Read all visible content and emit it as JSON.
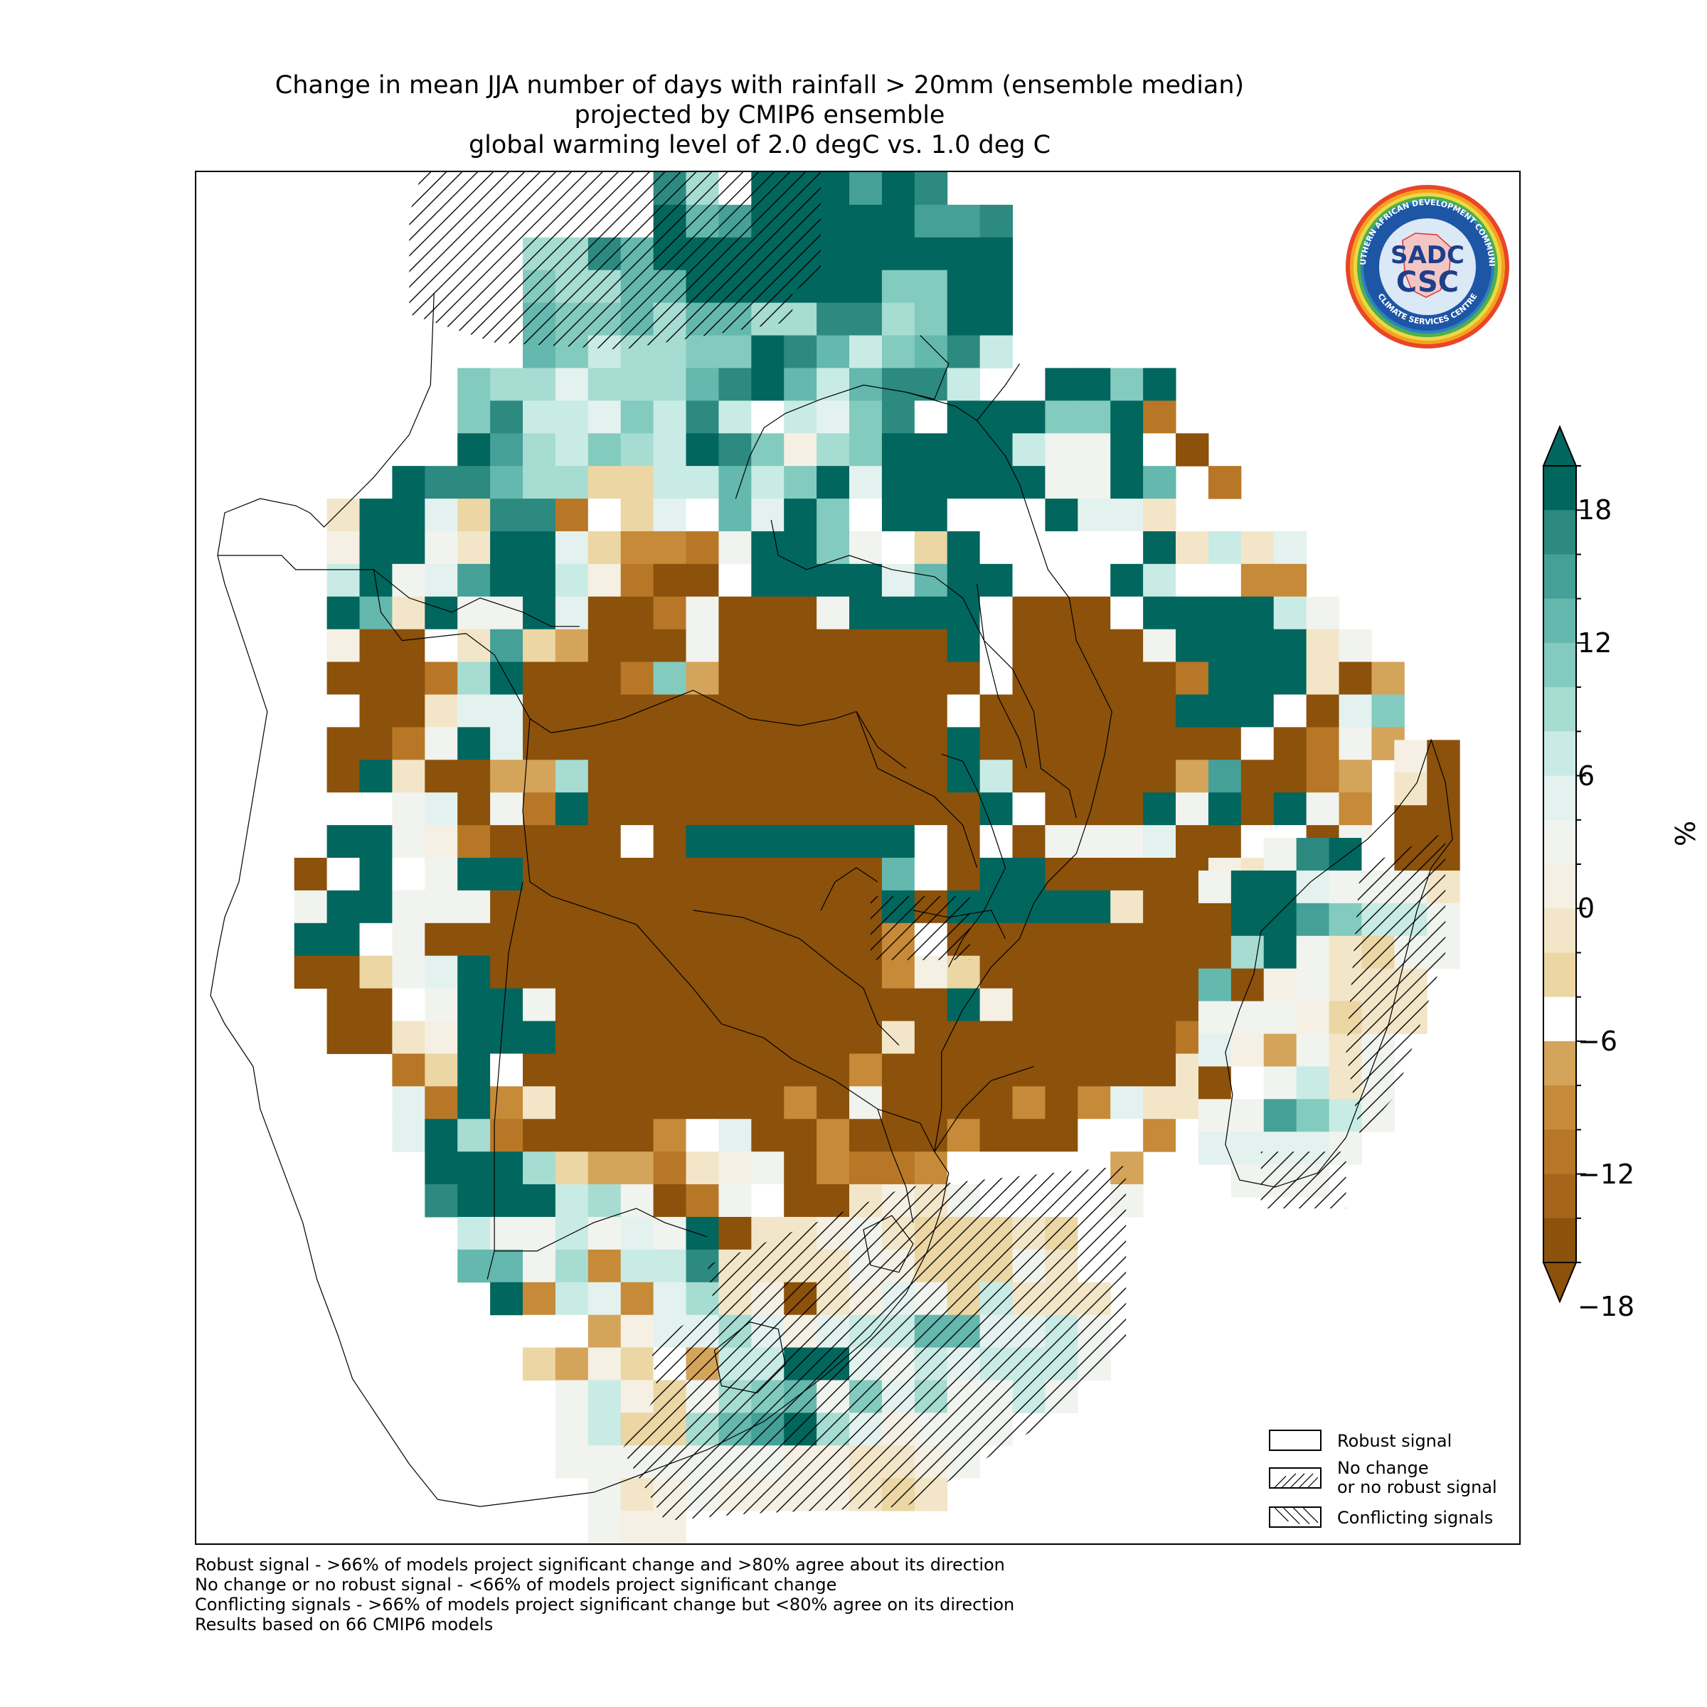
{
  "title": {
    "line1": "Change in mean JJA number of days with rainfall > 20mm (ensemble median)",
    "line2": "projected by CMIP6 ensemble",
    "line3": "global warming level of 2.0 degC vs. 1.0 deg C"
  },
  "logo": {
    "top_text": "SOUTHERN AFRICAN DEVELOPMENT COMMUNITY",
    "bottom_text": "CLIMATE SERVICES CENTRE",
    "center_text_1": "SADC",
    "center_text_2": "CSC"
  },
  "colorbar": {
    "unit_label": "%",
    "ticks": [
      "18",
      "12",
      "6",
      "0",
      "−6",
      "−12",
      "−18"
    ],
    "colors": [
      "#01665e",
      "#2c8a80",
      "#45a097",
      "#64b8ad",
      "#83cbbe",
      "#a6dcd2",
      "#c9ebe5",
      "#e3f2ef",
      "#f1f3ef",
      "#f5f0e3",
      "#f3e6c8",
      "#ebd6a4",
      "#ffffff",
      "#d4a45a",
      "#c68a38",
      "#b87726",
      "#a6651a",
      "#8c510a"
    ]
  },
  "legend": {
    "robust": "Robust signal",
    "no_change_1": "No change",
    "no_change_2": "or no robust signal",
    "conflicting": "Conflicting signals"
  },
  "footnotes": [
    "Robust signal - >66% of models project significant change and >80% agree about its direction",
    "No change or no robust signal - <66% of models project significant change",
    "Conflicting signals - >66% of models project significant change but <80% agree on its direction",
    "Results based on 66 CMIP6 models"
  ],
  "map": {
    "palette": {
      "A": "#01665e",
      "B": "#2c8a80",
      "C": "#45a097",
      "D": "#64b8ad",
      "E": "#83cbbe",
      "F": "#a6dcd2",
      "G": "#c9ebe5",
      "H": "#e3f2ef",
      "I": "#f1f3ef",
      "W": "#ffffff",
      "J": "#f5f0e3",
      "K": "#f3e6c8",
      "L": "#ebd6a4",
      "M": "#d4a45a",
      "N": "#c68a38",
      "O": "#b87726",
      "P": "#8c510a"
    },
    "grid_mainland": [
      "..............BFWAAACAB.........................",
      "..............ADCAAAAACCB.......................",
      "..........FFBDAAAAAAAAAAA.......................",
      "..........EFFDDAAAAAAEEAA.......................",
      "..........DEEDFDDFFBBFEAA.......................",
      "..........DEGFFEEABDGEDBG.......................",
      "........EFFHFFFDBADGDBBG..AAEA..................",
      "........EBGGHEGBGWGHEBWAAAEEAO..................",
      "........ACFGEFGABEJFEAAAAGIIAWP.................",
      "......ABBDFFLLGGDGEAHAAAAAIIAD.O................",
      "....KAAHLBBOWLHWDHAEWAAWWWAHHK..................",
      "....JAAIKAAHLNNOIAAEIWLAWWWWWAKGKH..............",
      "....GAIHCAAGJOPPWAAAAHDAAWWWAGWWNN..............",
      "....ADKAIIAHPPOIPPPIAAAAWPPPWAAAAGI.............",
      "....JPPWKCLMPPPIPPPPPPPAWPPPPIAAAAKI............",
      "....PPPOFAPPPOEMPPPPPPPPWPPPPPOAAAKPM...........",
      "....WPPKHHPPPPPPPPPPPPPWPPPPPPAAAWPHE...........",
      "....PPOIAHPPPPPPPPPPPPPAPPPPPPPPWPOIM...........",
      "....PAKPPMMFPPPPPPPPPPPAGPPPPPMCPPOM............",
      "....WWIHPIOAPPPPPPPPPPPPAWPPPAIAPAIN............",
      "....AAIJOPPPPWPAAAAAAAWPWPIIIHPPWWPI............",
      "...PWAWIAAPPPPPPPPPPPDWPAAPPPPPJKPPKK...........",
      "...IAAIIIPPPPPPPPPPPPAPAAAAAKPPPGIIPN...........",
      "...AAWIPPPPPPPPPPPPPPNWPPPPPPPPPPEHWM...........",
      "...PPLIHAPPPPPPPPPPPPNJLPPPPPPPPPHW.............",
      "....PPWIAAIPPPPPPPPPPPPAJPPPPPPPMW..............",
      "....PPKJAAAPPPPPPPPPPKPPPPPPPPOHI...............",
      "......OLAWPPPPPPPPPPNPPPPPPPPPKKK...............",
      "......HOANKPPPPPPPNPIPPPPNPNHKKK................",
      "......HAFOPPPPNWHPPNPPPNPPPWWNWM................",
      ".......AAAFLMMOKJIPNOONWWWWWM...................",
      ".......BAAAGFIPOIWPPKJKIWWWWI...................",
      "........GIIGIHIAPKKJIKLLLKLW....................",
      "........DDIFNGGBKKKKIJLLLIKW....................",
      ".........ANGHNHFKJPKJHILGKKK....................",
      "..........WWMJHHFHJHGGDDHHGI....................",
      "..........LMJLWMGGAAHIGHGGGI....................",
      "...........IGJLIFEDIEHFIIGI.....................",
      "...........IGLLFDCAFHJIII.......................",
      "...........IIIIIIIJJKKJI........................",
      "............IKJIJJJJKLK.........................",
      "............IJJ................................."
    ],
    "grid_madagascar": [
      "......JP",
      "......KP",
      "......PP",
      "..IBAWPP",
      "IAAHIIIK",
      "PAACEGGI",
      "PFAIKLII",
      "DPJIKKK.",
      "IIIJLKK.",
      "HJMIKI..",
      "PWIGKI..",
      "IICEGI..",
      "HHHHI...",
      ".III...."
    ]
  }
}
